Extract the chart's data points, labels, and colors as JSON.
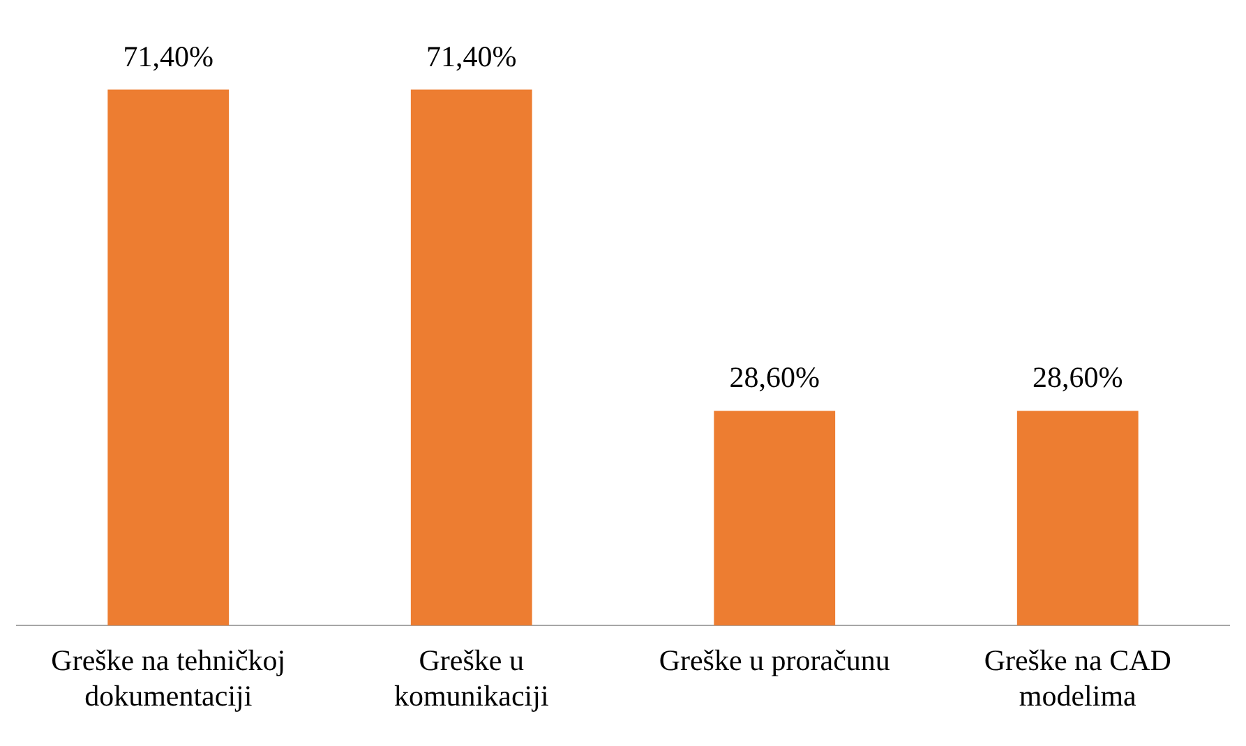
{
  "chart_data": {
    "type": "bar",
    "categories": [
      "Greške na tehničkoj dokumentaciji",
      "Greške u komunikaciji",
      "Greške u proračunu",
      "Greške na CAD modelima"
    ],
    "values": [
      71.4,
      71.4,
      28.6,
      28.6
    ],
    "value_labels": [
      "71,40%",
      "71,40%",
      "28,60%",
      "28,60%"
    ],
    "color": "#ed7d31",
    "grid": false,
    "legend": false
  }
}
